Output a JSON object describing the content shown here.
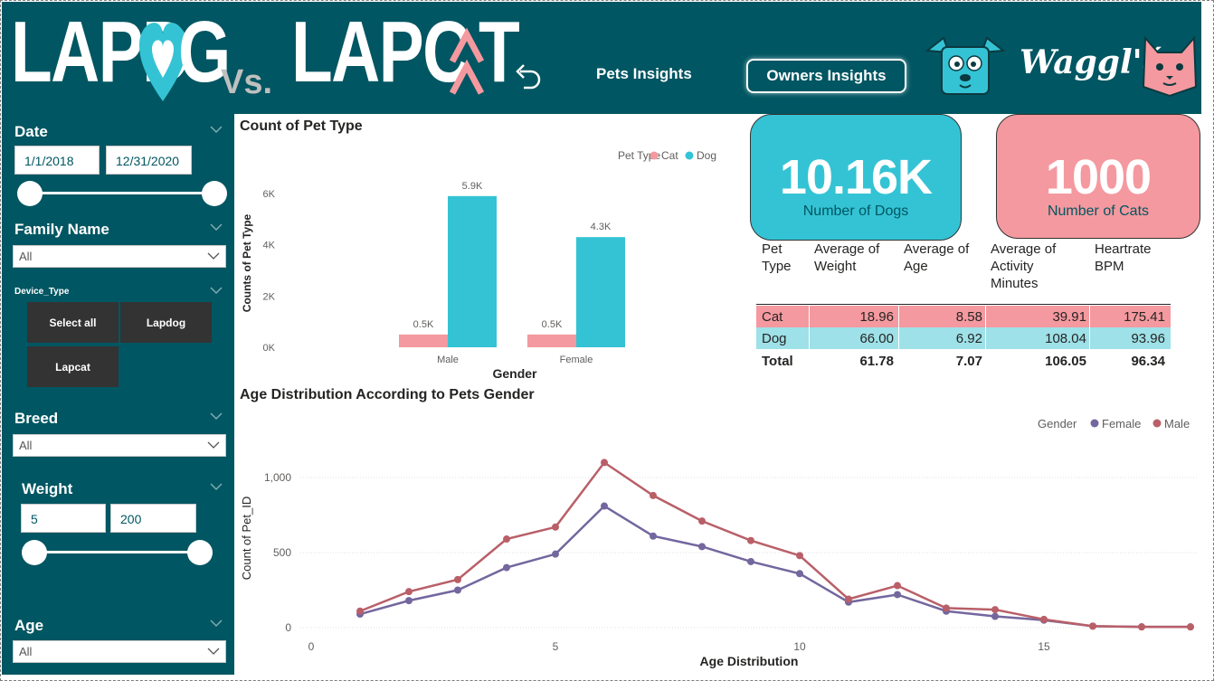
{
  "header": {
    "logo_dog_part1": "LAPD",
    "logo_dog_part2": "G",
    "logo_vs": "Vs.",
    "logo_cat_part1": "LAPC",
    "logo_cat_part2": "T",
    "nav_pets": "Pets Insights",
    "nav_owners": "Owners Insights",
    "brand": "Waggl'é"
  },
  "filters": {
    "date": {
      "label": "Date",
      "start": "1/1/2018",
      "end": "12/31/2020"
    },
    "family_name": {
      "label": "Family Name",
      "value": "All"
    },
    "device_type": {
      "label": "Device_Type",
      "tiles": [
        "Select all",
        "Lapdog",
        "Lapcat"
      ]
    },
    "breed": {
      "label": "Breed",
      "value": "All"
    },
    "weight": {
      "label": "Weight",
      "min": "5",
      "max": "200"
    },
    "age": {
      "label": "Age",
      "value": "All"
    }
  },
  "bar_chart": {
    "title": "Count of Pet Type",
    "legend_title": "Pet Type",
    "xlabel": "Gender",
    "ylabel": "Counts of Pet Type",
    "yticks": [
      "0K",
      "2K",
      "4K",
      "6K"
    ]
  },
  "kpis": {
    "dogs": {
      "value": "10.16K",
      "label": "Number of Dogs"
    },
    "cats": {
      "value": "1000",
      "label": "Number of Cats"
    }
  },
  "table": {
    "headers": [
      "Pet Type",
      "Average of Weight",
      "Average of Age",
      "Average of Activity Minutes",
      "Heartrate BPM"
    ],
    "rows": [
      {
        "type": "Cat",
        "weight": "18.96",
        "age": "8.58",
        "activity": "39.91",
        "bpm": "175.41"
      },
      {
        "type": "Dog",
        "weight": "66.00",
        "age": "6.92",
        "activity": "108.04",
        "bpm": "93.96"
      }
    ],
    "total": {
      "type": "Total",
      "weight": "61.78",
      "age": "7.07",
      "activity": "106.05",
      "bpm": "96.34"
    }
  },
  "line_chart": {
    "title": "Age Distribution According to Pets Gender",
    "legend_title": "Gender",
    "xlabel": "Age Distribution",
    "ylabel": "Count of Pet_ID",
    "yticks": [
      "0",
      "500",
      "1,000"
    ],
    "xticks": [
      "0",
      "5",
      "10",
      "15"
    ]
  },
  "colors": {
    "teal_dark": "#005662",
    "dog": "#34C3D4",
    "cat": "#F4999F",
    "female": "#73679E",
    "male": "#B95F68"
  },
  "chart_data": [
    {
      "type": "bar",
      "title": "Count of Pet Type",
      "categories": [
        "Male",
        "Female"
      ],
      "series": [
        {
          "name": "Cat",
          "values": [
            500,
            500
          ],
          "labels": [
            "0.5K",
            "0.5K"
          ]
        },
        {
          "name": "Dog",
          "values": [
            5900,
            4300
          ],
          "labels": [
            "5.9K",
            "4.3K"
          ]
        }
      ],
      "xlabel": "Gender",
      "ylabel": "Counts of Pet Type",
      "ylim": [
        0,
        6000
      ],
      "legend": "top-right"
    },
    {
      "type": "line",
      "title": "Age Distribution According to Pets Gender",
      "x": [
        1,
        2,
        3,
        4,
        5,
        6,
        7,
        8,
        9,
        10,
        11,
        12,
        13,
        14,
        15,
        16,
        17,
        18
      ],
      "series": [
        {
          "name": "Female",
          "values": [
            90,
            180,
            250,
            400,
            490,
            810,
            610,
            540,
            440,
            360,
            170,
            220,
            110,
            75,
            50,
            10,
            5,
            5
          ]
        },
        {
          "name": "Male",
          "values": [
            110,
            240,
            320,
            590,
            670,
            1100,
            880,
            710,
            580,
            480,
            190,
            280,
            130,
            120,
            55,
            10,
            5,
            5
          ]
        }
      ],
      "xlabel": "Age Distribution",
      "ylabel": "Count of Pet_ID",
      "xlim": [
        0,
        18
      ],
      "ylim": [
        0,
        1000
      ],
      "legend": "top-right",
      "grid": true
    }
  ]
}
